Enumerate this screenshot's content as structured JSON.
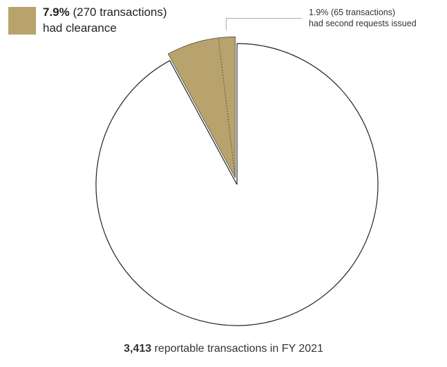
{
  "colors": {
    "accent": "#b8a36c",
    "outline": "#222222",
    "background": "#ffffff"
  },
  "legend": {
    "percent": "7.9%",
    "count_text": "(270 transactions)",
    "line2": "had clearance"
  },
  "callout": {
    "line1": "1.9% (65 transactions)",
    "line2": "had second requests issued"
  },
  "footer": {
    "number": "3,413",
    "text": "reportable transactions in FY 2021"
  },
  "chart_data": {
    "type": "pie",
    "total": 3413,
    "slices": [
      {
        "label": "had clearance",
        "value": 270,
        "percent": 7.9,
        "exploded": true,
        "color": "#b8a36c"
      },
      {
        "label": "",
        "value": 3143,
        "percent": 92.1,
        "exploded": false,
        "color": "#ffffff"
      }
    ],
    "sub_slices": [
      {
        "parent": "had clearance",
        "label": "had second requests issued",
        "value": 65,
        "percent": 1.9
      }
    ],
    "title": "",
    "legend_position": "top-left"
  }
}
